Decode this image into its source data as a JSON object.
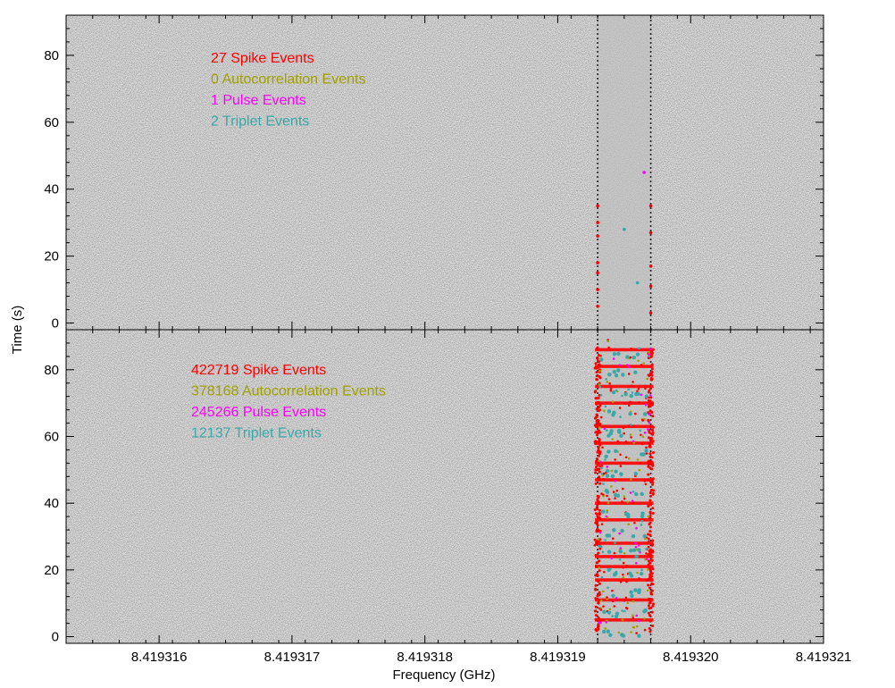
{
  "chart_data": {
    "type": "scatter",
    "xlabel": "Frequency (GHz)",
    "ylabel": "Time (s)",
    "xticks": [
      "8.419316",
      "8.419317",
      "8.419318",
      "8.419319",
      "8.419320",
      "8.419321"
    ],
    "xlim": [
      8.4193153,
      8.419321
    ],
    "grid": false,
    "colors": {
      "spike": "#ff0000",
      "autocorrelation": "#a0a000",
      "pulse": "#ff00ff",
      "triplet": "#3aa8a8",
      "background": "#e6e6e6"
    },
    "panels": [
      {
        "ylim": [
          -2,
          92
        ],
        "yticks": [
          "0",
          "20",
          "40",
          "60",
          "80"
        ],
        "counts": [
          {
            "text": "27 Spike Events",
            "key": "spike"
          },
          {
            "text": "0 Autocorrelation Events",
            "key": "autocorrelation"
          },
          {
            "text": "1 Pulse Events",
            "key": "pulse"
          },
          {
            "text": "2 Triplet Events",
            "key": "triplet"
          }
        ],
        "band_range": [
          8.4193193,
          8.4193197
        ],
        "spike_points": [
          {
            "x": 8.4193193,
            "y": 35
          },
          {
            "x": 8.4193193,
            "y": 30
          },
          {
            "x": 8.4193193,
            "y": 26
          },
          {
            "x": 8.4193193,
            "y": 18
          },
          {
            "x": 8.4193193,
            "y": 15
          },
          {
            "x": 8.4193193,
            "y": 10
          },
          {
            "x": 8.4193193,
            "y": 5
          },
          {
            "x": 8.4193197,
            "y": 35
          },
          {
            "x": 8.4193197,
            "y": 27
          },
          {
            "x": 8.4193197,
            "y": 17
          },
          {
            "x": 8.4193197,
            "y": 11
          },
          {
            "x": 8.4193197,
            "y": 3
          }
        ],
        "pulse_points": [
          {
            "x": 8.41931965,
            "y": 45
          }
        ],
        "triplet_points": [
          {
            "x": 8.4193196,
            "y": 12
          },
          {
            "x": 8.4193195,
            "y": 28
          }
        ]
      },
      {
        "ylim": [
          -2,
          92
        ],
        "yticks": [
          "0",
          "20",
          "40",
          "60",
          "80"
        ],
        "counts": [
          {
            "text": "422719 Spike Events",
            "key": "spike"
          },
          {
            "text": "378168 Autocorrelation Events",
            "key": "autocorrelation"
          },
          {
            "text": "245266 Pulse Events",
            "key": "pulse"
          },
          {
            "text": "12137 Triplet Events",
            "key": "triplet"
          }
        ],
        "band_range": [
          8.4193193,
          8.4193197
        ],
        "spike_rows": [
          86,
          81,
          75,
          70,
          63,
          58,
          52,
          47,
          40,
          35,
          28,
          24,
          21,
          17,
          11,
          5
        ],
        "triplet_rows": [
          84,
          79,
          73,
          67,
          61,
          55,
          49,
          43,
          37,
          31,
          25,
          19,
          13,
          7,
          1
        ]
      }
    ]
  }
}
